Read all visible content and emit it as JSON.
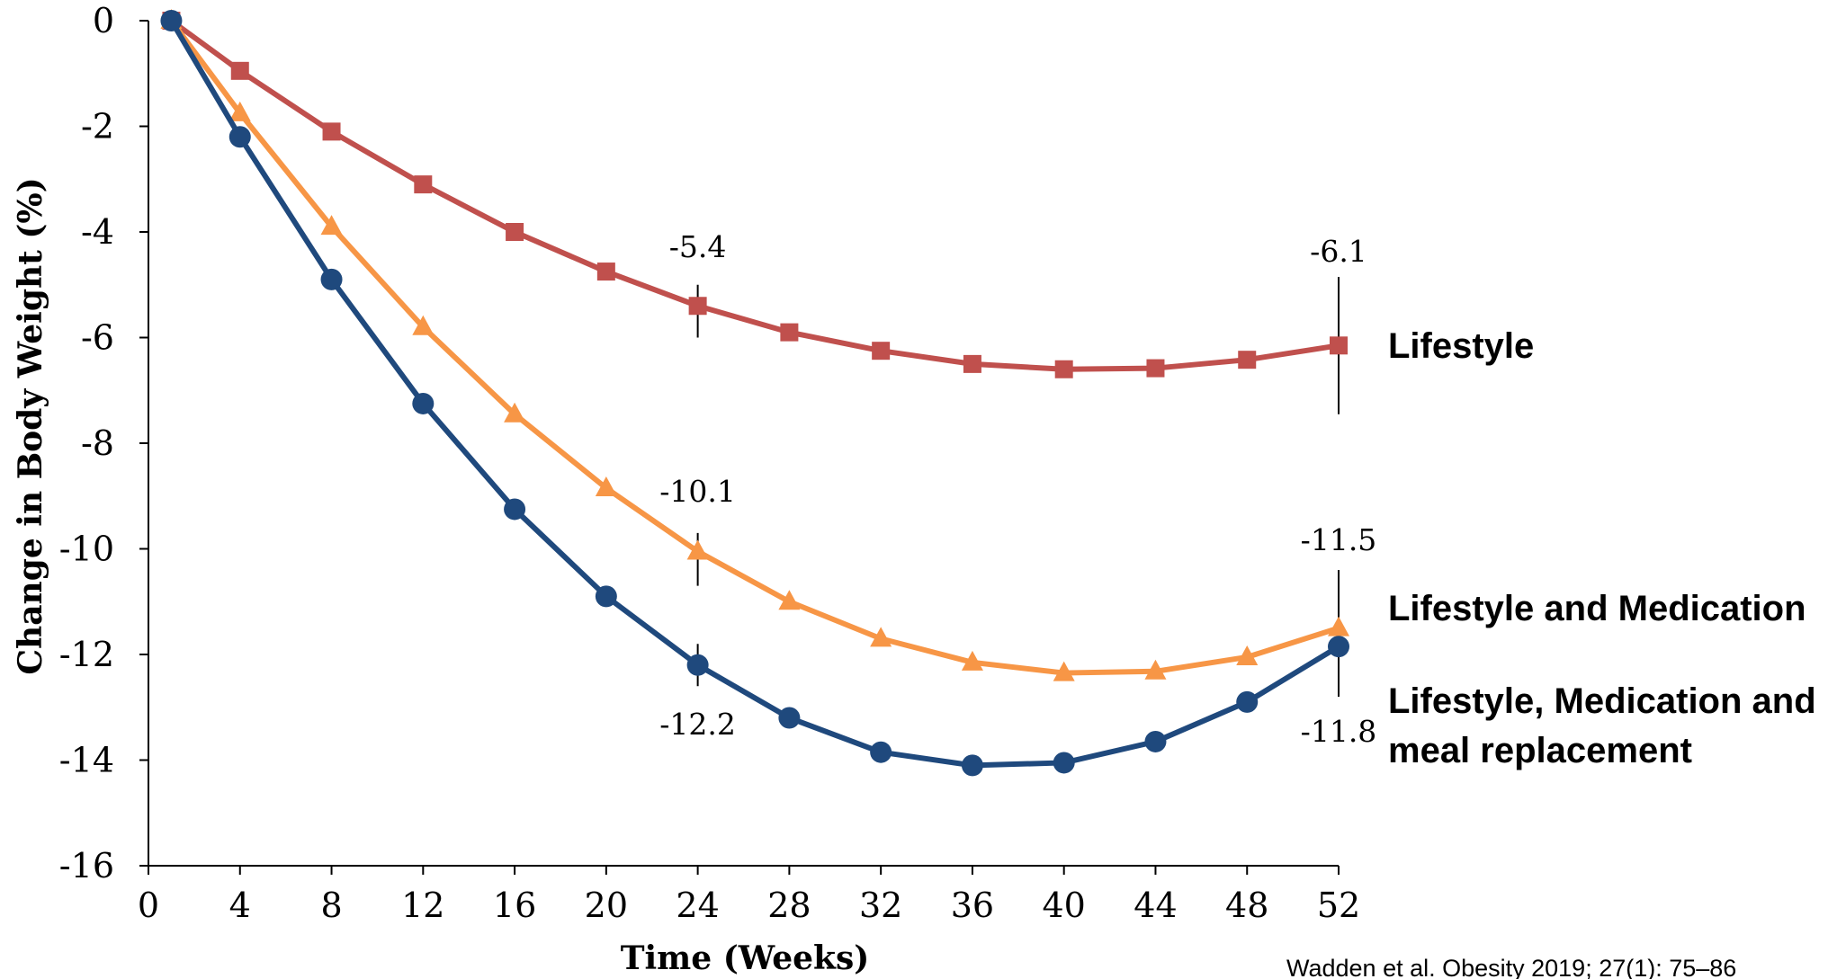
{
  "chart_data": {
    "type": "line",
    "title": "",
    "xlabel": "Time (Weeks)",
    "ylabel": "Change in Body Weight (%)",
    "xlim": [
      0,
      52
    ],
    "ylim": [
      -16,
      0
    ],
    "x_ticks": [
      0,
      4,
      8,
      12,
      16,
      20,
      24,
      28,
      32,
      36,
      40,
      44,
      48,
      52
    ],
    "y_ticks": [
      0,
      -2,
      -4,
      -6,
      -8,
      -10,
      -12,
      -14,
      -16
    ],
    "grid": false,
    "legend": "inline labels at right of lines",
    "series": [
      {
        "name": "Lifestyle",
        "color": "#C0504D",
        "marker": "square",
        "x": [
          1,
          4,
          8,
          12,
          16,
          20,
          24,
          28,
          32,
          36,
          40,
          44,
          48,
          52
        ],
        "values": [
          0,
          -0.95,
          -2.1,
          -3.1,
          -4.0,
          -4.75,
          -5.4,
          -5.9,
          -6.25,
          -6.5,
          -6.6,
          -6.58,
          -6.42,
          -6.15
        ]
      },
      {
        "name": "Lifestyle and  Medication",
        "color": "#F79646",
        "marker": "triangle",
        "x": [
          1,
          4,
          8,
          12,
          16,
          20,
          24,
          28,
          32,
          36,
          40,
          44,
          48,
          52
        ],
        "values": [
          0,
          -1.75,
          -3.9,
          -5.8,
          -7.45,
          -8.85,
          -10.05,
          -11.0,
          -11.7,
          -12.15,
          -12.35,
          -12.32,
          -12.05,
          -11.5
        ]
      },
      {
        "name": "Lifestyle, Medication and meal replacement",
        "color": "#1F497D",
        "marker": "circle",
        "x": [
          1,
          4,
          8,
          12,
          16,
          20,
          24,
          28,
          32,
          36,
          40,
          44,
          48,
          52
        ],
        "values": [
          0,
          -2.2,
          -4.9,
          -7.25,
          -9.25,
          -10.9,
          -12.2,
          -13.2,
          -13.85,
          -14.1,
          -14.05,
          -13.65,
          -12.9,
          -11.85
        ]
      }
    ],
    "annotations": [
      {
        "text": "-5.4",
        "x": 24,
        "series": 0
      },
      {
        "text": "-6.1",
        "x": 52,
        "series": 0
      },
      {
        "text": "-10.1",
        "x": 24,
        "series": 1
      },
      {
        "text": "-11.5",
        "x": 52,
        "series": 1
      },
      {
        "text": "-12.2",
        "x": 24,
        "series": 2
      },
      {
        "text": "-11.8",
        "x": 52,
        "series": 2
      }
    ],
    "legend_labels": [
      {
        "lines": [
          "Lifestyle"
        ],
        "series": 0
      },
      {
        "lines": [
          "Lifestyle and  Medication"
        ],
        "series": 1
      },
      {
        "lines": [
          "Lifestyle,  Medication and",
          "meal replacement"
        ],
        "series": 2
      }
    ],
    "citation": "Wadden et al. Obesity 2019; 27(1): 75–86"
  }
}
